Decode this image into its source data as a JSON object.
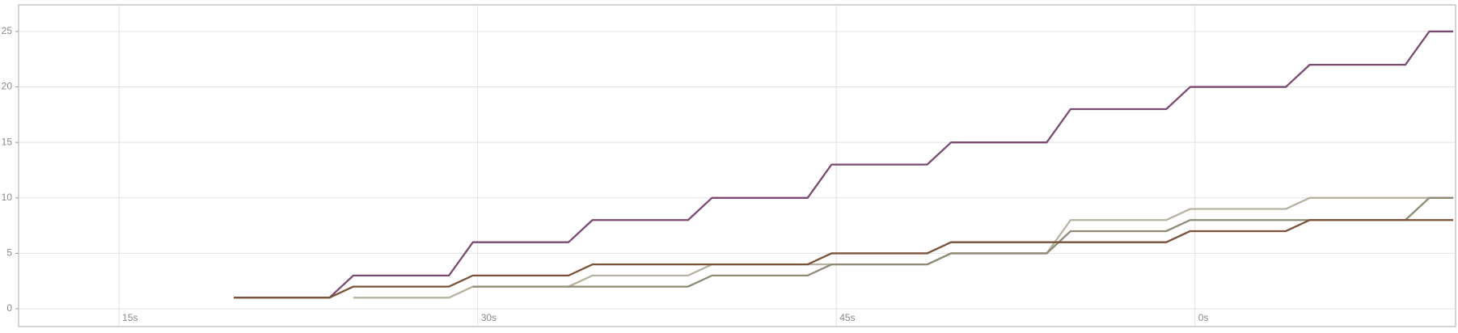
{
  "chart_data": {
    "type": "line",
    "x": [
      19.8,
      23.8,
      24.8,
      28.8,
      29.8,
      33.8,
      34.8,
      38.8,
      39.8,
      43.8,
      44.8,
      48.8,
      49.8,
      53.8,
      54.8,
      58.8,
      59.8,
      63.8,
      64.8,
      68.8,
      69.8,
      70.8
    ],
    "series": [
      {
        "color": "#7b4a73",
        "values": [
          1,
          1,
          3,
          3,
          6,
          6,
          8,
          8,
          10,
          10,
          13,
          13,
          15,
          15,
          18,
          18,
          20,
          20,
          22,
          22,
          25,
          25
        ]
      },
      {
        "color": "#b7b2a2",
        "values": [
          null,
          null,
          1,
          1,
          2,
          2,
          3,
          3,
          4,
          4,
          4,
          4,
          5,
          5,
          8,
          8,
          9,
          9,
          10,
          10,
          10,
          10
        ]
      },
      {
        "color": "#8e8a76",
        "values": [
          null,
          null,
          null,
          null,
          2,
          2,
          2,
          2,
          3,
          3,
          4,
          4,
          5,
          5,
          7,
          7,
          8,
          8,
          8,
          8,
          10,
          10
        ]
      },
      {
        "color": "#7a5238",
        "values": [
          1,
          1,
          2,
          2,
          3,
          3,
          4,
          4,
          4,
          4,
          5,
          5,
          6,
          6,
          6,
          6,
          7,
          7,
          8,
          8,
          8,
          8
        ]
      }
    ],
    "xlim": [
      10.8,
      70.9
    ],
    "xticks": [
      {
        "value": 15,
        "label": "15s"
      },
      {
        "value": 30,
        "label": "30s"
      },
      {
        "value": 45,
        "label": "45s"
      },
      {
        "value": 60,
        "label": "0s"
      }
    ],
    "ylim": [
      -1.6,
      27.4
    ],
    "yticks": [
      0,
      5,
      10,
      15,
      20,
      25
    ],
    "grid": true
  }
}
